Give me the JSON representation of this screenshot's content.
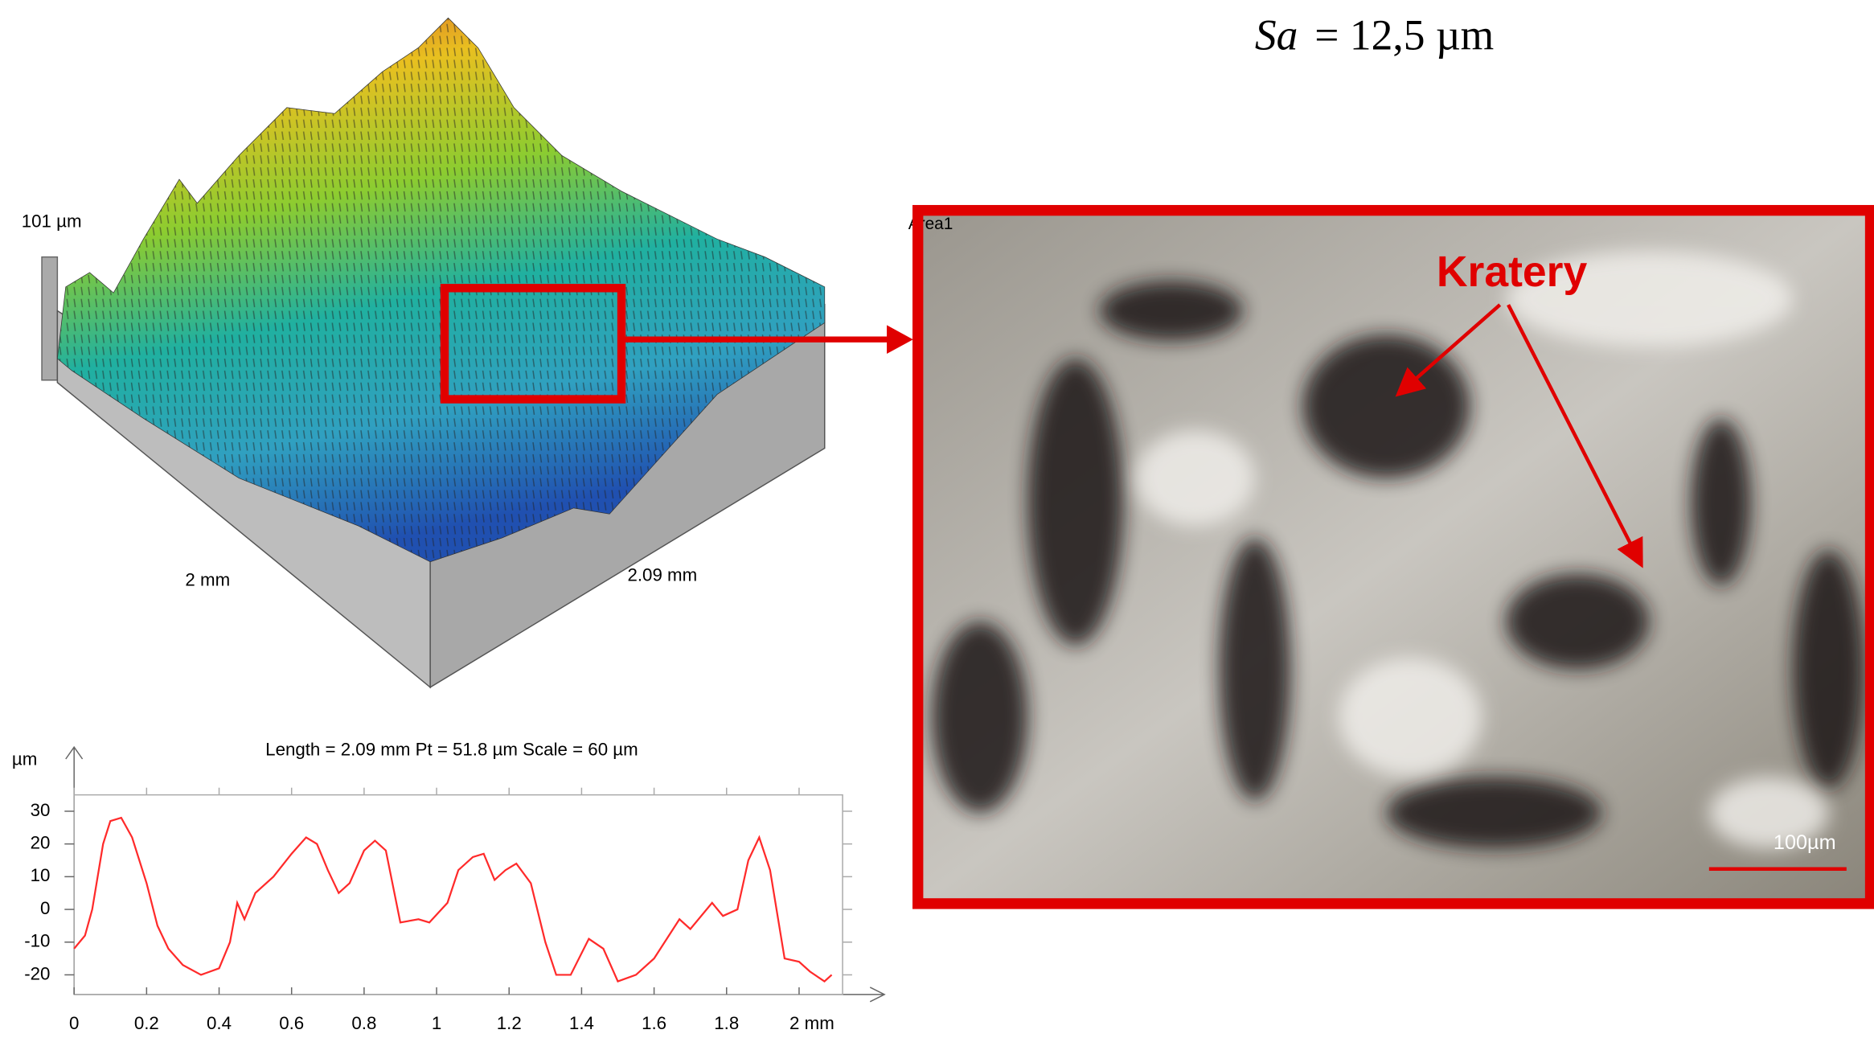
{
  "sa": {
    "symbol": "Sa",
    "value": "= 12,5 µm"
  },
  "surface_3d": {
    "height_label": "101 µm",
    "x_label": "2 mm",
    "y_label": "2.09 mm"
  },
  "micrograph": {
    "area_label": "Area1",
    "annotation": "Kratery",
    "scale_label": "100µm"
  },
  "chart_data": {
    "type": "line",
    "title": "Length = 2.09 mm  Pt = 51.8 µm  Scale = 60 µm",
    "y_label": "µm",
    "x": [
      0,
      0.03,
      0.05,
      0.08,
      0.1,
      0.13,
      0.16,
      0.2,
      0.23,
      0.26,
      0.3,
      0.35,
      0.4,
      0.43,
      0.45,
      0.47,
      0.5,
      0.55,
      0.6,
      0.64,
      0.67,
      0.7,
      0.73,
      0.76,
      0.8,
      0.83,
      0.86,
      0.9,
      0.95,
      0.98,
      1.03,
      1.06,
      1.1,
      1.13,
      1.16,
      1.19,
      1.22,
      1.26,
      1.3,
      1.33,
      1.37,
      1.42,
      1.46,
      1.5,
      1.55,
      1.6,
      1.67,
      1.7,
      1.76,
      1.79,
      1.83,
      1.86,
      1.89,
      1.92,
      1.96,
      2.0,
      2.03,
      2.07,
      2.09
    ],
    "values": [
      -12,
      -8,
      0,
      20,
      27,
      28,
      22,
      8,
      -5,
      -12,
      -17,
      -20,
      -18,
      -10,
      2,
      -3,
      5,
      10,
      17,
      22,
      20,
      12,
      5,
      8,
      18,
      21,
      18,
      -4,
      -3,
      -4,
      2,
      12,
      16,
      17,
      9,
      12,
      14,
      8,
      -10,
      -20,
      -20,
      -9,
      -12,
      -22,
      -20,
      -15,
      -3,
      -6,
      2,
      -2,
      0,
      15,
      22,
      12,
      -15,
      -16,
      -19,
      -22,
      -20
    ],
    "color": "#ff2a2a",
    "xlim": [
      0,
      2.12
    ],
    "ylim": [
      -26,
      35
    ],
    "xticks": [
      0,
      0.2,
      0.4,
      0.6,
      0.8,
      1,
      1.2,
      1.4,
      1.6,
      1.8,
      {
        "value": 2,
        "label": "2 mm"
      }
    ],
    "yticks": [
      -20,
      -10,
      0,
      10,
      20,
      30
    ]
  }
}
